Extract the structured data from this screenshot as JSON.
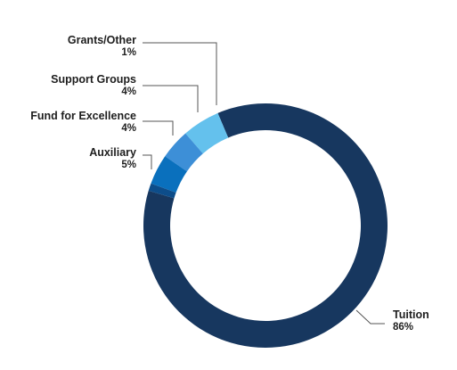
{
  "chart_data": {
    "type": "pie",
    "title": "",
    "categories": [
      "Tuition",
      "Auxiliary",
      "Fund for Excellence",
      "Support Groups",
      "Grants/Other"
    ],
    "values": [
      86,
      5,
      4,
      4,
      1
    ],
    "value_labels": [
      "86%",
      "5%",
      "4%",
      "4%",
      "1%"
    ],
    "colors": [
      "#17375f",
      "#64c1ed",
      "#3d8fd7",
      "#0a70bd",
      "#0d4d8a"
    ],
    "style": "donut",
    "legend": "none"
  }
}
